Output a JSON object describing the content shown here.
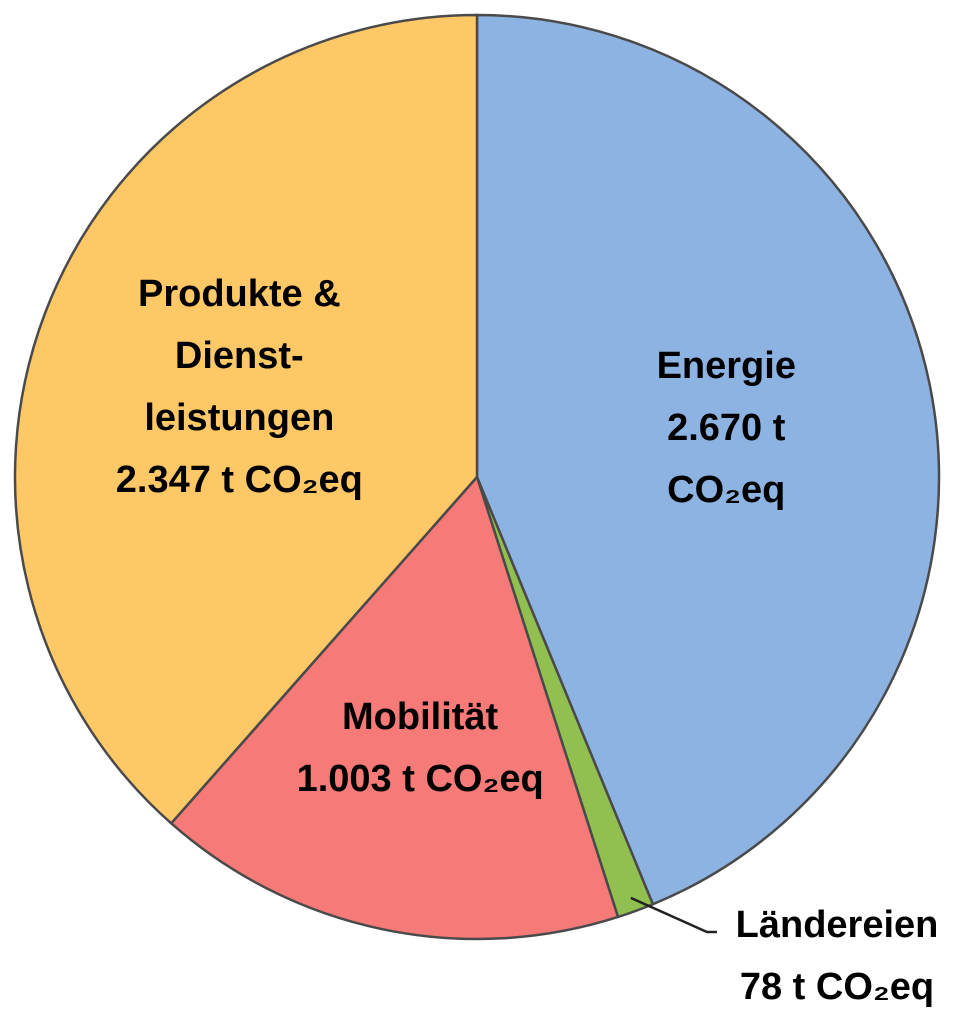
{
  "chart_data": {
    "type": "pie",
    "categories": [
      "Energie",
      "Ländereien",
      "Mobilität",
      "Produkte & Dienst-leistungen"
    ],
    "values": [
      2670,
      78,
      1003,
      2347
    ],
    "value_labels": [
      "2.670 t CO₂eq",
      "78 t CO₂eq",
      "1.003 t CO₂eq",
      "2.347 t CO₂eq"
    ],
    "colors": [
      "#8db3e2",
      "#92c050",
      "#f57a78",
      "#ffc866"
    ]
  }
}
